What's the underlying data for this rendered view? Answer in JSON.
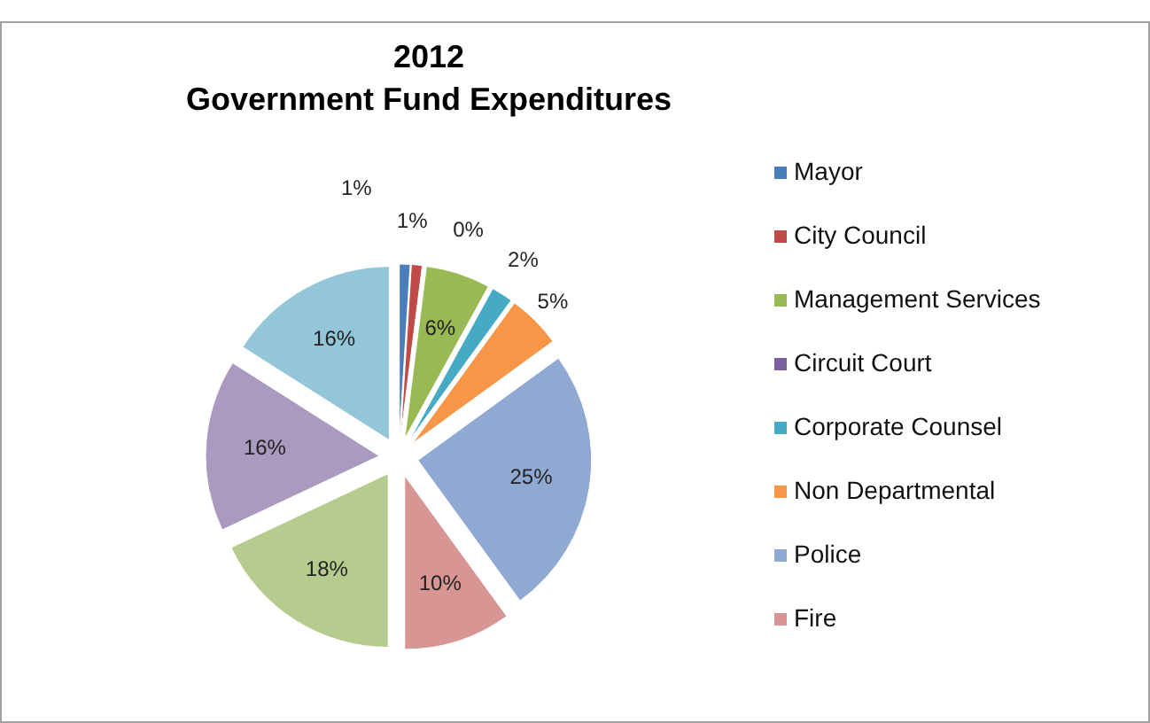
{
  "chart_data": {
    "type": "pie",
    "title": "2012\nGovernment Fund Expenditures",
    "categories": [
      "Mayor",
      "City Council",
      "Management Services",
      "Circuit Court",
      "Corporate Counsel",
      "Non Departmental",
      "Police",
      "Fire",
      null,
      null,
      null
    ],
    "values": [
      1,
      1,
      6,
      0,
      2,
      5,
      25,
      10,
      18,
      16,
      16
    ],
    "value_labels": [
      "1%",
      "1%",
      "6%",
      "0%",
      "2%",
      "5%",
      "25%",
      "10%",
      "18%",
      "16%",
      "16%"
    ],
    "colors": [
      "#4a7ebb",
      "#be4b48",
      "#98b954",
      "#7d60a0",
      "#46aac5",
      "#f79646",
      "#8fa9d3",
      "#d79593",
      "#b5cc8e",
      "#ab9ac0",
      "#93c6d9"
    ],
    "legend": "right"
  }
}
